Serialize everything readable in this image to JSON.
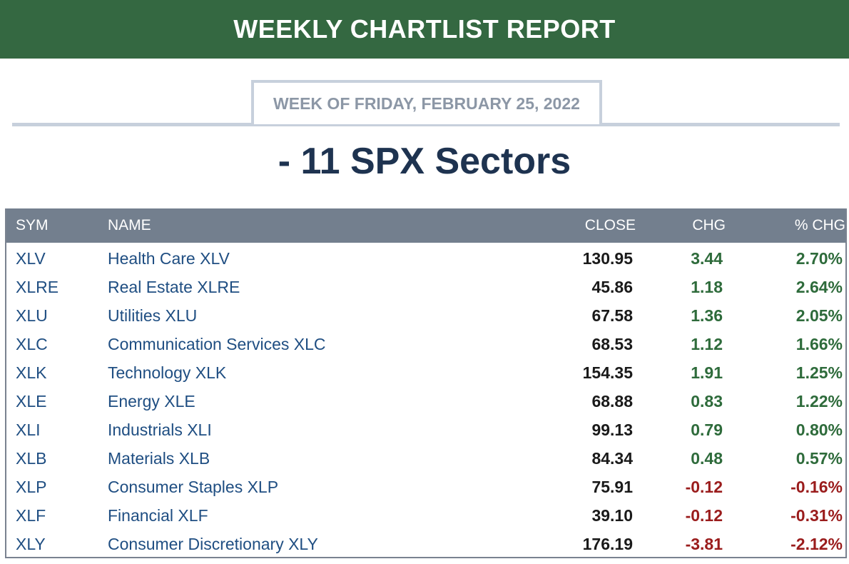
{
  "report": {
    "banner": "WEEKLY CHARTLIST REPORT",
    "week_label": "WEEK OF FRIDAY, FEBRUARY 25, 2022",
    "title": "- 11 SPX Sectors"
  },
  "table": {
    "headers": {
      "sym": "SYM",
      "name": "NAME",
      "close": "CLOSE",
      "chg": "CHG",
      "pct": "% CHG"
    },
    "rows": [
      {
        "sym": "XLV",
        "name": "Health Care XLV",
        "close": "130.95",
        "chg": "3.44",
        "pct": "2.70%",
        "direction": "up"
      },
      {
        "sym": "XLRE",
        "name": "Real Estate XLRE",
        "close": "45.86",
        "chg": "1.18",
        "pct": "2.64%",
        "direction": "up"
      },
      {
        "sym": "XLU",
        "name": "Utilities XLU",
        "close": "67.58",
        "chg": "1.36",
        "pct": "2.05%",
        "direction": "up"
      },
      {
        "sym": "XLC",
        "name": "Communication Services XLC",
        "close": "68.53",
        "chg": "1.12",
        "pct": "1.66%",
        "direction": "up"
      },
      {
        "sym": "XLK",
        "name": "Technology XLK",
        "close": "154.35",
        "chg": "1.91",
        "pct": "1.25%",
        "direction": "up"
      },
      {
        "sym": "XLE",
        "name": "Energy XLE",
        "close": "68.88",
        "chg": "0.83",
        "pct": "1.22%",
        "direction": "up"
      },
      {
        "sym": "XLI",
        "name": "Industrials XLI",
        "close": "99.13",
        "chg": "0.79",
        "pct": "0.80%",
        "direction": "up"
      },
      {
        "sym": "XLB",
        "name": "Materials XLB",
        "close": "84.34",
        "chg": "0.48",
        "pct": "0.57%",
        "direction": "up"
      },
      {
        "sym": "XLP",
        "name": "Consumer Staples XLP",
        "close": "75.91",
        "chg": "-0.12",
        "pct": "-0.16%",
        "direction": "down"
      },
      {
        "sym": "XLF",
        "name": "Financial XLF",
        "close": "39.10",
        "chg": "-0.12",
        "pct": "-0.31%",
        "direction": "down"
      },
      {
        "sym": "XLY",
        "name": "Consumer Discretionary XLY",
        "close": "176.19",
        "chg": "-3.81",
        "pct": "-2.12%",
        "direction": "down"
      }
    ]
  },
  "colors": {
    "banner_green": "#346841",
    "title_navy": "#1e3350",
    "header_gray": "#737f8e",
    "link_blue": "#1f4e82",
    "positive_green": "#2e6b3b",
    "negative_red": "#9a1c1c"
  }
}
